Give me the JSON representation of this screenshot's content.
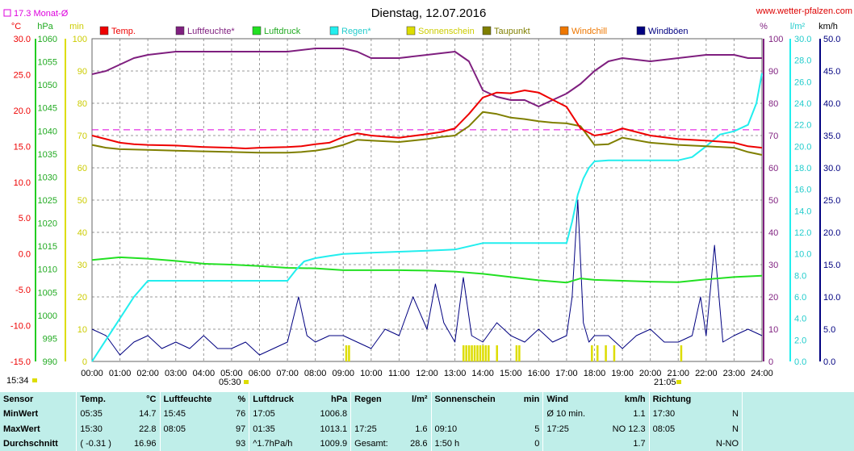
{
  "header": {
    "title": "Dienstag, 12.07.2016",
    "source": "www.wetter-pfalzen.com",
    "monthly_avg": "17.3 Monat-Ø",
    "current_time": "15:34",
    "sunrise": "05:30",
    "sunset": "21:05"
  },
  "colors": {
    "temp": "#ee0000",
    "humidity": "#7f1f7f",
    "pressure": "#22e022",
    "rain": "#22eeee",
    "sunshine": "#dddd00",
    "dewpoint": "#7f7f00",
    "windchill": "#ee7700",
    "gusts": "#000080",
    "grid": "#999999",
    "avg_line": "#dd00dd"
  },
  "chart_data": {
    "type": "line",
    "title": "Dienstag, 12.07.2016",
    "x_ticks": [
      "00:00",
      "01:00",
      "02:00",
      "03:00",
      "04:00",
      "05:00",
      "06:00",
      "07:00",
      "08:00",
      "09:00",
      "10:00",
      "11:00",
      "12:00",
      "13:00",
      "14:00",
      "15:00",
      "16:00",
      "17:00",
      "18:00",
      "19:00",
      "20:00",
      "21:00",
      "22:00",
      "23:00",
      "24:00"
    ],
    "xlim": [
      0,
      24
    ],
    "monthly_avg_temp": 17.3,
    "legend": [
      "Temp.",
      "Luftfeuchte*",
      "Luftdruck",
      "Regen*",
      "Sonnenschein",
      "Taupunkt",
      "Windchill",
      "Windböen"
    ],
    "axes": {
      "temp": {
        "unit": "°C",
        "ylim": [
          -15,
          30
        ],
        "ticks": [
          "30.0",
          "25.0",
          "20.0",
          "15.0",
          "10.0",
          "5.0",
          "0.0",
          "-5.0",
          "-10.0",
          "-15.0"
        ]
      },
      "pressure": {
        "unit": "hPa",
        "ylim": [
          990,
          1060
        ],
        "ticks": [
          "1060",
          "1055",
          "1050",
          "1045",
          "1040",
          "1035",
          "1030",
          "1025",
          "1020",
          "1015",
          "1010",
          "1005",
          "1000",
          "995",
          "990"
        ]
      },
      "sunshine": {
        "unit": "min",
        "ylim": [
          0,
          100
        ],
        "ticks": [
          "100",
          "90",
          "80",
          "70",
          "60",
          "50",
          "40",
          "30",
          "20",
          "10",
          "0"
        ]
      },
      "humidity": {
        "unit": "%",
        "ylim": [
          0,
          100
        ],
        "ticks": [
          "100",
          "90",
          "80",
          "70",
          "60",
          "50",
          "40",
          "30",
          "20",
          "10",
          "0"
        ]
      },
      "rain": {
        "unit": "l/m²",
        "ylim": [
          0,
          30
        ],
        "ticks": [
          "30.0",
          "28.0",
          "26.0",
          "24.0",
          "22.0",
          "20.0",
          "18.0",
          "16.0",
          "14.0",
          "12.0",
          "10.0",
          "8.0",
          "6.0",
          "4.0",
          "2.0",
          "0.0"
        ]
      },
      "wind": {
        "unit": "km/h",
        "ylim": [
          0,
          50
        ],
        "ticks": [
          "50.0",
          "45.0",
          "40.0",
          "35.0",
          "30.0",
          "25.0",
          "20.0",
          "15.0",
          "10.0",
          "5.0",
          "0.0"
        ]
      }
    },
    "series": [
      {
        "name": "Temp.",
        "axis": "temp",
        "x": [
          0,
          0.5,
          1,
          1.5,
          2,
          3,
          4,
          5,
          5.5,
          6,
          7,
          7.5,
          8,
          8.5,
          9,
          9.5,
          10,
          11,
          12,
          12.5,
          13,
          13.5,
          14,
          14.5,
          15,
          15.5,
          16,
          16.5,
          17,
          17.5,
          18,
          18.5,
          19,
          20,
          21,
          22,
          23,
          23.5,
          24
        ],
        "y": [
          16.5,
          16,
          15.5,
          15.3,
          15.2,
          15.1,
          14.9,
          14.8,
          14.7,
          14.8,
          14.9,
          15,
          15.3,
          15.5,
          16.3,
          16.8,
          16.5,
          16.2,
          16.7,
          17,
          17.5,
          19.5,
          21.8,
          22.5,
          22.4,
          22.8,
          22.5,
          21.5,
          20.5,
          17.5,
          16.5,
          16.8,
          17.5,
          16.5,
          16,
          15.8,
          15.5,
          15,
          14.8
        ]
      },
      {
        "name": "Luftfeuchte*",
        "axis": "humidity",
        "x": [
          0,
          0.5,
          1,
          1.5,
          2,
          3,
          4,
          5,
          6,
          7,
          8,
          9,
          9.5,
          10,
          10.5,
          11,
          12,
          13,
          13.5,
          14,
          14.5,
          15,
          15.5,
          16,
          16.5,
          17,
          17.5,
          18,
          18.5,
          19,
          20,
          21,
          22,
          23,
          23.5,
          24
        ],
        "y": [
          89,
          90,
          92,
          94,
          95,
          96,
          96,
          96,
          96,
          96,
          97,
          97,
          96,
          94,
          94,
          94,
          95,
          96,
          93,
          84,
          82,
          81,
          81,
          79,
          81,
          83,
          86,
          90,
          93,
          94,
          93,
          94,
          95,
          95,
          94,
          94
        ]
      },
      {
        "name": "Luftdruck",
        "axis": "pressure",
        "x": [
          0,
          1,
          2,
          3,
          4,
          5,
          6,
          7,
          8,
          9,
          10,
          11,
          12,
          13,
          14,
          15,
          16,
          17,
          17.5,
          18,
          19,
          20,
          21,
          22,
          23,
          24
        ],
        "y": [
          1012,
          1012.6,
          1012.3,
          1011.8,
          1011.2,
          1011,
          1010.7,
          1010.3,
          1010.2,
          1009.8,
          1009.8,
          1009.8,
          1009.7,
          1009.5,
          1009,
          1008.3,
          1007.6,
          1007.1,
          1008,
          1007.7,
          1007.5,
          1007.3,
          1007.2,
          1007.8,
          1008.3,
          1008.6
        ]
      },
      {
        "name": "Regen*",
        "axis": "rain",
        "x": [
          0,
          0.5,
          1,
          1.5,
          2,
          2.5,
          3,
          4,
          5,
          6,
          7,
          7.3,
          7.6,
          8,
          8.5,
          9,
          10,
          11,
          12,
          13,
          14,
          15,
          16,
          17,
          17.2,
          17.4,
          17.6,
          17.8,
          18,
          18.5,
          19,
          20,
          21,
          21.5,
          22,
          22.5,
          23,
          23.5,
          23.8,
          24
        ],
        "y": [
          0,
          2,
          4,
          6,
          7.5,
          7.5,
          7.5,
          7.5,
          7.5,
          7.5,
          7.5,
          8.5,
          9.3,
          9.6,
          9.8,
          10,
          10.1,
          10.2,
          10.3,
          10.4,
          11,
          11,
          11,
          11,
          13,
          15.5,
          17,
          18,
          18.6,
          18.7,
          18.7,
          18.7,
          18.7,
          19,
          20,
          21.1,
          21.4,
          22,
          24,
          26.8
        ]
      },
      {
        "name": "Taupunkt",
        "axis": "temp",
        "x": [
          0,
          0.5,
          1,
          2,
          3,
          4,
          5,
          6,
          7,
          7.5,
          8,
          8.5,
          9,
          9.5,
          10,
          11,
          12,
          12.5,
          13,
          13.5,
          14,
          14.5,
          15,
          15.5,
          16,
          16.5,
          17,
          17.5,
          18,
          18.5,
          19,
          20,
          21,
          22,
          23,
          23.5,
          24
        ],
        "y": [
          15.2,
          14.8,
          14.6,
          14.5,
          14.4,
          14.3,
          14.2,
          14.1,
          14.1,
          14.2,
          14.4,
          14.7,
          15.2,
          15.9,
          15.8,
          15.6,
          16,
          16.3,
          16.5,
          17.8,
          19.8,
          19.5,
          19,
          18.8,
          18.5,
          18.3,
          18.2,
          17.8,
          15.2,
          15.3,
          16.2,
          15.5,
          15.2,
          15,
          14.8,
          14.2,
          13.8
        ]
      },
      {
        "name": "Windböen",
        "axis": "wind",
        "x": [
          0,
          0.5,
          1,
          1.5,
          2,
          2.5,
          3,
          3.5,
          4,
          4.5,
          5,
          5.5,
          6,
          6.5,
          7,
          7.4,
          7.7,
          8,
          8.5,
          9,
          9.5,
          10,
          10.5,
          11,
          11.5,
          12,
          12.3,
          12.6,
          13,
          13.3,
          13.6,
          14,
          14.5,
          15,
          15.5,
          16,
          16.5,
          17,
          17.2,
          17.4,
          17.6,
          17.8,
          18,
          18.5,
          19,
          19.5,
          20,
          20.5,
          21,
          21.5,
          21.8,
          22,
          22.3,
          22.6,
          23,
          23.5,
          24
        ],
        "y": [
          5,
          4,
          1,
          3,
          4,
          2,
          3,
          2,
          4,
          2,
          2,
          3,
          1,
          2,
          3,
          10,
          4,
          3,
          4,
          4,
          3,
          2,
          5,
          4,
          10,
          5,
          12,
          6,
          3,
          13,
          4,
          3,
          6,
          4,
          3,
          5,
          3,
          4,
          10,
          25,
          6,
          3,
          4,
          4,
          2,
          4,
          5,
          3,
          3,
          4,
          10,
          4,
          18,
          3,
          4,
          5,
          4
        ]
      }
    ],
    "sunshine_hours": [
      9.1,
      9.2,
      13.3,
      13.4,
      13.5,
      13.6,
      13.7,
      13.8,
      13.9,
      14.0,
      14.1,
      14.2,
      14.5,
      15.2,
      15.3,
      17.9,
      18.1,
      18.4,
      18.7,
      21.1
    ],
    "stats": {
      "labels": {
        "sensor": "Sensor",
        "min": "MinWert",
        "max": "MaxWert",
        "avg": "Durchschnitt"
      },
      "columns": [
        {
          "head": "Temp.",
          "unit": "°C",
          "min_time": "05:35",
          "min_val": "14.7",
          "max_time": "15:30",
          "max_val": "22.8",
          "avg_a": "( -0.31 )",
          "avg_b": "16.96"
        },
        {
          "head": "Luftfeuchte",
          "unit": "%",
          "min_time": "15:45",
          "min_val": "76",
          "max_time": "08:05",
          "max_val": "97",
          "avg_a": "",
          "avg_b": "93"
        },
        {
          "head": "Luftdruck",
          "unit": "hPa",
          "min_time": "17:05",
          "min_val": "1006.8",
          "max_time": "01:35",
          "max_val": "1013.1",
          "avg_a": "^1.7hPa/h",
          "avg_b": "1009.9"
        },
        {
          "head": "Regen",
          "unit": "l/m²",
          "min_time": "",
          "min_val": "",
          "max_time": "17:25",
          "max_val": "1.6",
          "avg_a": "Gesamt:",
          "avg_b": "28.6"
        },
        {
          "head": "Sonnenschein",
          "unit": "min",
          "min_time": "",
          "min_val": "",
          "max_time": "09:10",
          "max_val": "5",
          "avg_a": "1:50 h",
          "avg_b": "0"
        },
        {
          "head": "Wind",
          "unit": "km/h",
          "min_time": "Ø 10 min.",
          "min_val": "1.1",
          "max_time": "17:25",
          "max_val": "NO 12.3",
          "avg_a": "",
          "avg_b": "1.7"
        },
        {
          "head": "Richtung",
          "unit": "",
          "min_time": "17:30",
          "min_val": "N",
          "max_time": "08:05",
          "max_val": "N",
          "avg_a": "",
          "avg_b": "N-NO"
        }
      ]
    }
  }
}
